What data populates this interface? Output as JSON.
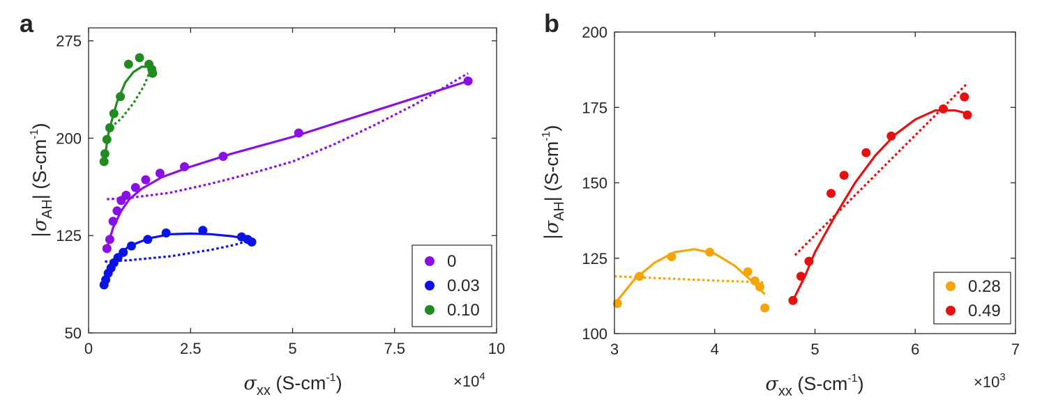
{
  "chart_data": [
    {
      "panel_label": "a",
      "type": "scatter",
      "x_label_symbol": "σ",
      "x_label_sub": "xx",
      "x_label_unit": " (S-cm",
      "x_label_exp": "-1",
      "x_label_close": ")",
      "y_label_pre": "|σ",
      "y_label_sub": "AH",
      "y_label_mid": "| (S-cm",
      "y_label_exp": "-1",
      "y_label_close": ")",
      "x_multiplier_base": "×10",
      "x_multiplier_exp": "4",
      "xlim": [
        0,
        10
      ],
      "ylim": [
        50,
        285
      ],
      "x_ticks": [
        0,
        2.5,
        5,
        7.5,
        10
      ],
      "x_tick_labels": [
        "0",
        "2.5",
        "5",
        "7.5",
        "10"
      ],
      "y_ticks": [
        50,
        125,
        200,
        275
      ],
      "y_tick_labels": [
        "50",
        "125",
        "200",
        "275"
      ],
      "legend_position": "bottom-right",
      "series": [
        {
          "name": "0",
          "color": "#8A0EE6",
          "x": [
            0.45,
            0.52,
            0.6,
            0.7,
            0.8,
            0.92,
            1.15,
            1.4,
            1.75,
            2.35,
            3.3,
            5.15,
            9.3
          ],
          "y": [
            115,
            122,
            136,
            144,
            152,
            156,
            162,
            168,
            173,
            178,
            186,
            204,
            244
          ],
          "fit_solid": {
            "x": [
              0.45,
              0.6,
              0.8,
              1.0,
              1.3,
              1.8,
              2.5,
              3.5,
              5.0,
              7.0,
              9.3
            ],
            "y": [
              115,
              131,
              144,
              153,
              161,
              170,
              178,
              188,
              201,
              221,
              244
            ]
          },
          "fit_dotted": {
            "x": [
              0.45,
              1.0,
              2.0,
              3.0,
              4.0,
              5.0,
              6.0,
              7.0,
              8.0,
              9.3
            ],
            "y": [
              153,
              154,
              158,
              165,
              173,
              182,
              195,
              210,
              226,
              250
            ]
          }
        },
        {
          "name": "0.03",
          "color": "#0A12E6",
          "x": [
            0.38,
            0.42,
            0.48,
            0.55,
            0.62,
            0.72,
            0.85,
            1.05,
            1.45,
            1.9,
            2.8,
            3.75,
            3.9,
            4.0
          ],
          "y": [
            87,
            91,
            96,
            100,
            104,
            108,
            112,
            117,
            122,
            127,
            129,
            124,
            122,
            120
          ],
          "fit_solid": {
            "x": [
              0.38,
              0.5,
              0.7,
              1.0,
              1.5,
              2.0,
              2.5,
              3.0,
              3.5,
              4.0
            ],
            "y": [
              87,
              99,
              109,
              117,
              123,
              126,
              126.5,
              126,
              124.5,
              122
            ]
          },
          "fit_dotted": {
            "x": [
              0.4,
              1.0,
              2.0,
              3.0,
              3.6,
              4.0
            ],
            "y": [
              105,
              106,
              109,
              114,
              118,
              122
            ]
          }
        },
        {
          "name": "0.10",
          "color": "#218A21",
          "x": [
            0.38,
            0.4,
            0.45,
            0.52,
            0.62,
            0.78,
            0.98,
            1.25,
            1.48,
            1.55,
            1.57
          ],
          "y": [
            182,
            188,
            199,
            208,
            219,
            232,
            257,
            262,
            257,
            253,
            250
          ],
          "fit_solid": {
            "x": [
              0.38,
              0.5,
              0.7,
              0.9,
              1.1,
              1.3,
              1.5,
              1.57
            ],
            "y": [
              182,
              206,
              228,
              243,
              251,
              255,
              255,
              253
            ]
          },
          "fit_dotted": {
            "x": [
              0.45,
              0.8,
              1.1,
              1.35,
              1.57
            ],
            "y": [
              206,
              215,
              227,
              240,
              256
            ]
          }
        }
      ]
    },
    {
      "panel_label": "b",
      "type": "scatter",
      "x_label_symbol": "σ",
      "x_label_sub": "xx",
      "x_label_unit": " (S-cm",
      "x_label_exp": "-1",
      "x_label_close": ")",
      "y_label_pre": "|σ",
      "y_label_sub": "AH",
      "y_label_mid": "| (S-cm",
      "y_label_exp": "-1",
      "y_label_close": ")",
      "x_multiplier_base": "×10",
      "x_multiplier_exp": "3",
      "xlim": [
        3,
        7
      ],
      "ylim": [
        100,
        200
      ],
      "x_ticks": [
        3,
        4,
        5,
        6,
        7
      ],
      "x_tick_labels": [
        "3",
        "4",
        "5",
        "6",
        "7"
      ],
      "y_ticks": [
        100,
        125,
        150,
        175,
        200
      ],
      "y_tick_labels": [
        "100",
        "125",
        "150",
        "175",
        "200"
      ],
      "legend_position": "bottom-right",
      "series": [
        {
          "name": "0.28",
          "color": "#F5A50A",
          "x": [
            3.03,
            3.25,
            3.57,
            3.95,
            4.33,
            4.4,
            4.45,
            4.5
          ],
          "y": [
            110,
            119,
            125.5,
            127,
            120.5,
            117.5,
            115.5,
            108.5
          ],
          "fit_solid": {
            "x": [
              3.03,
              3.2,
              3.4,
              3.6,
              3.8,
              4.0,
              4.2,
              4.4,
              4.5
            ],
            "y": [
              111,
              118,
              123.5,
              127,
              128,
              126.5,
              122.5,
              116.5,
              113
            ]
          },
          "fit_dotted": {
            "x": [
              3.0,
              3.5,
              4.0,
              4.5
            ],
            "y": [
              119,
              118.3,
              117.6,
              117
            ]
          }
        },
        {
          "name": "0.49",
          "color": "#E61010",
          "x": [
            4.78,
            4.86,
            4.94,
            5.16,
            5.29,
            5.51,
            5.76,
            6.28,
            6.49,
            6.52
          ],
          "y": [
            111,
            119,
            124,
            146.5,
            152.5,
            160,
            165.5,
            174.5,
            178.5,
            172.5
          ],
          "fit_solid": {
            "x": [
              4.78,
              4.9,
              5.0,
              5.2,
              5.4,
              5.6,
              5.8,
              6.0,
              6.2,
              6.4,
              6.52
            ],
            "y": [
              111,
              119,
              127,
              139,
              150,
              159,
              166,
              171,
              174,
              174,
              173
            ]
          },
          "fit_dotted": {
            "x": [
              4.8,
              6.52
            ],
            "y": [
              126,
              183
            ]
          }
        }
      ]
    }
  ]
}
